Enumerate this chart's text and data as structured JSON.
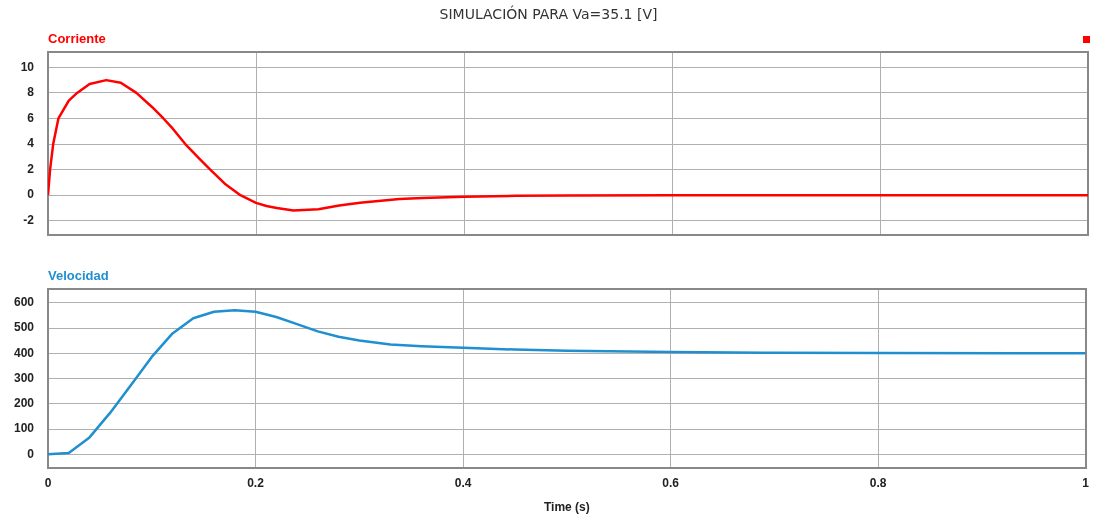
{
  "chart_data": [
    {
      "type": "line",
      "title": "SIMULACIÓN PARA Va=35.1 [V]",
      "tick_labels": "y",
      "grid": true,
      "line_style": "solid",
      "marker": "none",
      "x": [
        0,
        0.002,
        0.005,
        0.01,
        0.02,
        0.028,
        0.04,
        0.056,
        0.07,
        0.085,
        0.1,
        0.111,
        0.12,
        0.132,
        0.145,
        0.156,
        0.17,
        0.185,
        0.2,
        0.21,
        0.22,
        0.236,
        0.26,
        0.28,
        0.3,
        0.338,
        0.36,
        0.4,
        0.45,
        0.5,
        0.6,
        0.8,
        1
      ],
      "series": [
        {
          "name": "Corriente",
          "color": "#ff0000",
          "values": [
            0,
            2,
            4,
            6,
            7.4,
            8,
            8.7,
            9,
            8.8,
            8,
            6.9,
            6,
            5.2,
            4,
            2.9,
            2,
            0.9,
            0,
            -0.6,
            -0.85,
            -1,
            -1.2,
            -1.1,
            -0.8,
            -0.6,
            -0.3,
            -0.22,
            -0.12,
            -0.05,
            -0.02,
            0,
            0,
            0
          ]
        }
      ],
      "xlim": [
        0,
        1
      ],
      "xticks": [
        0,
        0.2,
        0.4,
        0.6,
        0.8,
        1
      ],
      "ylim": [
        -3.1,
        11.2
      ],
      "yticks": [
        -2,
        0,
        2,
        4,
        6,
        8,
        10
      ]
    },
    {
      "type": "line",
      "xlabel": "Time (s)",
      "grid": true,
      "line_style": "solid",
      "marker": "none",
      "x": [
        0,
        0.02,
        0.04,
        0.06,
        0.08,
        0.1,
        0.12,
        0.14,
        0.16,
        0.18,
        0.2,
        0.22,
        0.24,
        0.26,
        0.28,
        0.3,
        0.33,
        0.36,
        0.4,
        0.45,
        0.5,
        0.6,
        0.7,
        0.8,
        1
      ],
      "series": [
        {
          "name": "Velocidad",
          "color": "#1f8fd0",
          "values": [
            0,
            5,
            67,
            165,
            275,
            386,
            479,
            539,
            565,
            571,
            565,
            544,
            516,
            487,
            466,
            451,
            435,
            428,
            422,
            415,
            410,
            405,
            402,
            401,
            400
          ]
        }
      ],
      "xlim": [
        0,
        1
      ],
      "xticks": [
        0,
        0.2,
        0.4,
        0.6,
        0.8,
        1
      ],
      "ylim": [
        -55,
        655
      ],
      "yticks": [
        0,
        100,
        200,
        300,
        400,
        500,
        600
      ]
    }
  ]
}
